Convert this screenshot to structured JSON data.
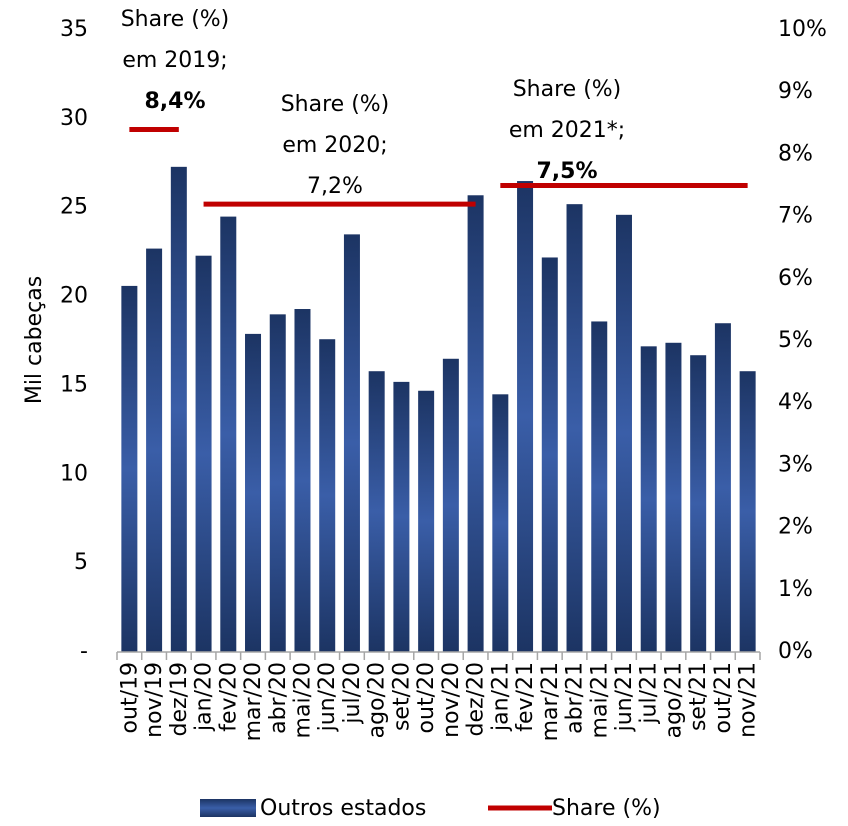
{
  "chart_data": {
    "type": "bar",
    "y_label": "Mil cabeças",
    "categories": [
      "out/19",
      "nov/19",
      "dez/19",
      "jan/20",
      "fev/20",
      "mar/20",
      "abr/20",
      "mai/20",
      "jun/20",
      "jul/20",
      "ago/20",
      "set/20",
      "out/20",
      "nov/20",
      "dez/20",
      "jan/21",
      "fev/21",
      "mar/21",
      "abr/21",
      "mai/21",
      "jun/21",
      "jul/21",
      "ago/21",
      "set/21",
      "out/21",
      "nov/21"
    ],
    "series": [
      {
        "name": "Outros estados",
        "type": "bar",
        "color": "#3a5ea8",
        "values": [
          20.6,
          22.7,
          27.3,
          22.3,
          24.5,
          17.9,
          19.0,
          19.3,
          17.6,
          23.5,
          15.8,
          15.2,
          14.7,
          16.5,
          25.7,
          14.5,
          26.5,
          22.2,
          25.2,
          18.6,
          24.6,
          17.2,
          17.4,
          16.7,
          18.5,
          15.8
        ]
      },
      {
        "name": "Share (%)",
        "type": "line",
        "color": "#c00000",
        "axis": "y2",
        "values": [
          8.4,
          8.4,
          8.4,
          7.2,
          7.2,
          7.2,
          7.2,
          7.2,
          7.2,
          7.2,
          7.2,
          7.2,
          7.2,
          7.2,
          7.2,
          7.5,
          7.5,
          7.5,
          7.5,
          7.5,
          7.5,
          7.5,
          7.5,
          7.5,
          7.5,
          7.5
        ]
      }
    ],
    "annotations": [
      {
        "text": [
          "Share (%)",
          "em 2019;"
        ],
        "label": "8,4%",
        "bold": true
      },
      {
        "text": [
          "Share (%)",
          "em 2020;"
        ],
        "label": "7,2%",
        "bold": false
      },
      {
        "text": [
          "Share (%)",
          "em 2021*;"
        ],
        "label": "7,5%",
        "bold": true
      }
    ],
    "ylim": [
      0,
      35
    ],
    "yticks": [
      {
        "value": 0,
        "label": "-"
      },
      5,
      10,
      15,
      20,
      25,
      30,
      35
    ],
    "y2lim": [
      0,
      10
    ],
    "y2ticks": [
      {
        "value": 0,
        "label": "0%"
      },
      {
        "value": 1,
        "label": "1%"
      },
      {
        "value": 2,
        "label": "2%"
      },
      {
        "value": 3,
        "label": "3%"
      },
      {
        "value": 4,
        "label": "4%"
      },
      {
        "value": 5,
        "label": "5%"
      },
      {
        "value": 6,
        "label": "6%"
      },
      {
        "value": 7,
        "label": "7%"
      },
      {
        "value": 8,
        "label": "8%"
      },
      {
        "value": 9,
        "label": "9%"
      },
      {
        "value": 10,
        "label": "10%"
      }
    ],
    "legend": "bottom"
  }
}
